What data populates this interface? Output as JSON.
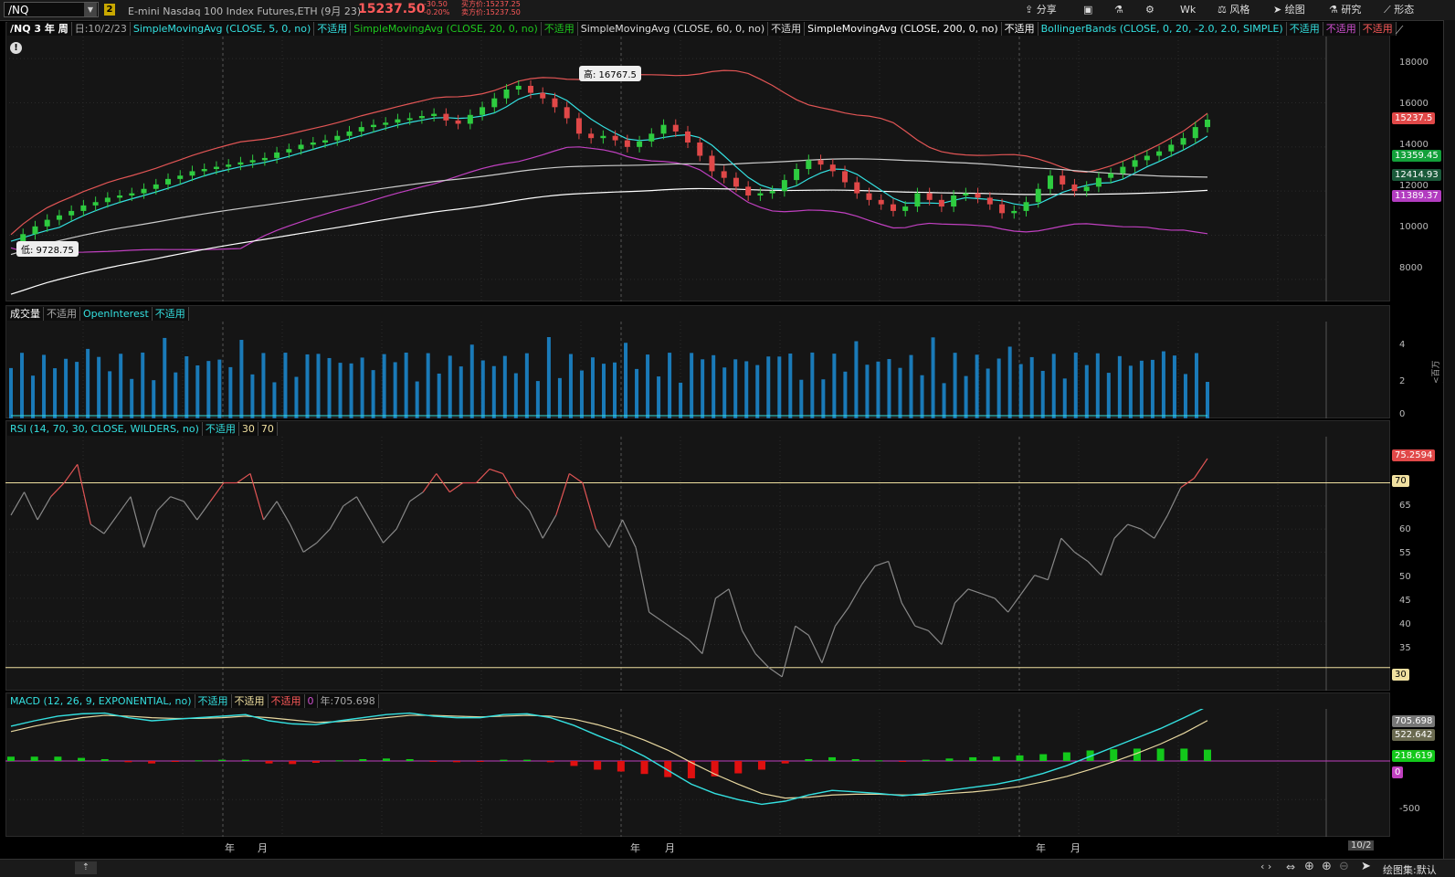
{
  "header": {
    "symbol": "/NQ",
    "link_badge": "2",
    "description": "E-mini Nasdaq 100 Index Futures,ETH (9月 23)",
    "last_price": "15237.50",
    "change": "-30.50",
    "change_pct": "-0.20%",
    "ask": "买方价:15237.25",
    "bid": "卖方价:15237.50",
    "buttons": [
      "分享",
      "风格",
      "绘图",
      "研究",
      "形态"
    ],
    "aggregation": "Wk"
  },
  "price_pane": {
    "title": "/NQ 3 年 周",
    "date": "日:10/2/23",
    "studies": [
      {
        "label": "SimpleMovingAvg (CLOSE, 5, 0, no)",
        "value": "不适用",
        "color": "#34e0e0"
      },
      {
        "label": "SimpleMovingAvg (CLOSE, 20, 0, no)",
        "value": "不适用",
        "color": "#1ec81e"
      },
      {
        "label": "SimpleMovingAvg (CLOSE, 60, 0, no)",
        "value": "不适用",
        "color": "#dddddd"
      },
      {
        "label": "SimpleMovingAvg (CLOSE, 200, 0, no)",
        "value": "不适用",
        "color": "#ffffff"
      },
      {
        "label": "BollingerBands (CLOSE, 0, 20, -2.0, 2.0, SIMPLE)",
        "value": "不适用",
        "color": "#34e0e0"
      }
    ],
    "bb_values": [
      "不适用",
      "不适用"
    ],
    "high_label": "高: 16767.5",
    "low_label": "低: 9728.75",
    "year_markers": [
      "年",
      "年",
      "年"
    ],
    "y_ticks": [
      "18000",
      "16000",
      "14000",
      "12000",
      "10000",
      "8000"
    ],
    "tags": [
      {
        "text": "15237.5",
        "bg": "#e04848"
      },
      {
        "text": "13359.45",
        "bg": "#13a03a"
      },
      {
        "text": "12414.93",
        "bg": "#1a5a3a"
      },
      {
        "text": "11389.37",
        "bg": "#b23cc0"
      }
    ]
  },
  "volume_pane": {
    "title": "成交量",
    "value": "不适用",
    "oi_label": "OpenInterest",
    "oi_value": "不适用",
    "y_ticks": [
      "4",
      "2",
      "0"
    ],
    "unit": "<百万>"
  },
  "rsi_pane": {
    "title": "RSI (14, 70, 30, CLOSE, WILDERS, no)",
    "value": "不适用",
    "lower": "30",
    "upper": "70",
    "y_ticks": [
      "65",
      "60",
      "55",
      "50",
      "45",
      "40",
      "35"
    ],
    "tag_value": "75.2594",
    "tag_70": "70",
    "tag_30": "30"
  },
  "macd_pane": {
    "title": "MACD (12, 26, 9, EXPONENTIAL, no)",
    "values": [
      "不适用",
      "不适用",
      "不适用"
    ],
    "zero": "0",
    "year_value": "年:705.698",
    "tags": [
      {
        "text": "705.698",
        "bg": "#777"
      },
      {
        "text": "522.642",
        "bg": "#6a6a50"
      },
      {
        "text": "218.619",
        "bg": "#13c81b"
      },
      {
        "text": "0",
        "bg": "#c040c0"
      }
    ],
    "y_ticks": [
      "-500"
    ]
  },
  "time_axis": {
    "labels": [
      "年",
      "月",
      "年",
      "月",
      "年",
      "月"
    ],
    "cursor_date": "10/2"
  },
  "footer": {
    "drawing_set": "绘图集:默认"
  },
  "chart_data": {
    "type": "line",
    "title": "/NQ 3 年 周",
    "ylim": [
      7000,
      19000
    ],
    "price_series": [
      9728.75,
      10050,
      10400,
      10700,
      10900,
      11100,
      11350,
      11500,
      11700,
      11800,
      11900,
      12100,
      12300,
      12550,
      12700,
      12900,
      13000,
      13100,
      13200,
      13300,
      13400,
      13500,
      13750,
      13900,
      14100,
      14200,
      14300,
      14500,
      14700,
      14900,
      15000,
      15100,
      15250,
      15300,
      15400,
      15500,
      15200,
      15050,
      15450,
      15800,
      16200,
      16600,
      16767.5,
      16450,
      16200,
      15800,
      15300,
      14600,
      14400,
      14500,
      14300,
      14000,
      14250,
      14600,
      15000,
      14700,
      14200,
      13600,
      12900,
      12600,
      12200,
      11800,
      11900,
      12000,
      12500,
      13000,
      13400,
      13200,
      12900,
      12400,
      11900,
      11600,
      11400,
      11100,
      11300,
      11900,
      11600,
      11300,
      11800,
      11900,
      11700,
      11400,
      11000,
      11100,
      11500,
      12100,
      12700,
      12300,
      12000,
      12200,
      12600,
      12800,
      13100,
      13400,
      13600,
      13800,
      14100,
      14400,
      14900,
      15237.5
    ],
    "rsi": [
      63,
      68,
      62,
      67,
      70,
      74,
      61,
      59,
      63,
      67,
      56,
      64,
      67,
      66,
      62,
      66,
      70,
      70,
      72,
      62,
      66,
      61,
      55,
      57,
      60,
      65,
      67,
      62,
      57,
      60,
      66,
      68,
      72,
      68,
      70,
      70,
      73,
      72,
      67,
      64,
      58,
      63,
      72,
      70,
      60,
      56,
      62,
      56,
      42,
      40,
      38,
      36,
      33,
      45,
      47,
      38,
      33,
      30,
      28,
      39,
      37,
      31,
      39,
      43,
      48,
      52,
      53,
      44,
      39,
      38,
      35,
      44,
      47,
      46,
      45,
      42,
      46,
      50,
      49,
      58,
      55,
      53,
      50,
      58,
      61,
      60,
      58,
      63,
      69,
      71,
      75.2594
    ],
    "macd": [
      450,
      520,
      580,
      610,
      620,
      560,
      520,
      540,
      560,
      580,
      600,
      520,
      480,
      470,
      520,
      560,
      600,
      620,
      580,
      560,
      560,
      600,
      610,
      560,
      460,
      330,
      210,
      60,
      -120,
      -300,
      -420,
      -500,
      -560,
      -520,
      -440,
      -380,
      -400,
      -420,
      -450,
      -420,
      -380,
      -340,
      -300,
      -240,
      -160,
      -60,
      60,
      180,
      300,
      420,
      560,
      705.698
    ],
    "signal": [
      380,
      450,
      510,
      560,
      590,
      580,
      560,
      550,
      550,
      560,
      580,
      560,
      530,
      500,
      510,
      530,
      560,
      590,
      590,
      580,
      570,
      580,
      590,
      580,
      540,
      470,
      380,
      270,
      140,
      -20,
      -170,
      -300,
      -420,
      -480,
      -470,
      -440,
      -430,
      -430,
      -440,
      -440,
      -420,
      -400,
      -370,
      -330,
      -270,
      -200,
      -110,
      -10,
      100,
      220,
      360,
      522.642
    ]
  }
}
